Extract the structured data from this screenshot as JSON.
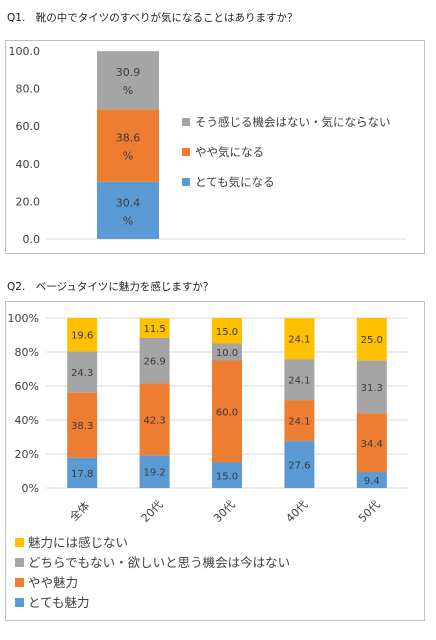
{
  "q1": {
    "title": "Q1.　靴の中でタイツのすべりが気になることはありますか？"
  },
  "q2": {
    "title": "Q2.　ベージュタイツに魅力を感じますか？"
  },
  "colors": {
    "yellow": "#ffc000",
    "gray": "#a5a5a5",
    "orange": "#ed7d31",
    "blue": "#5b9bd5",
    "text": "#404040",
    "grid": "#d9d9d9"
  },
  "chart_data": [
    {
      "type": "bar",
      "stacked": true,
      "title": "",
      "categories": [
        ""
      ],
      "series": [
        {
          "name": "とても気になる",
          "values": [
            30.4
          ],
          "labels": [
            "30.4\n%"
          ],
          "color": "#5b9bd5"
        },
        {
          "name": "やや気になる",
          "values": [
            38.6
          ],
          "labels": [
            "38.6\n%"
          ],
          "color": "#ed7d31"
        },
        {
          "name": "そう感じる機会はない・気にならない",
          "values": [
            30.9
          ],
          "labels": [
            "30.9\n%"
          ],
          "color": "#a5a5a5"
        }
      ],
      "yticks": [
        "0.0",
        "20.0",
        "40.0",
        "60.0",
        "80.0",
        "100.0"
      ],
      "ylim": [
        0,
        100
      ],
      "grid": false,
      "legend": "right"
    },
    {
      "type": "bar",
      "stacked": true,
      "title": "",
      "categories": [
        "全体",
        "20代",
        "30代",
        "40代",
        "50代"
      ],
      "series": [
        {
          "name": "とても魅力",
          "values": [
            17.8,
            19.2,
            15.0,
            27.6,
            9.4
          ],
          "labels": [
            "17.8",
            "19.2",
            "15.0",
            "27.6",
            "9.4"
          ],
          "color": "#5b9bd5"
        },
        {
          "name": "やや魅力",
          "values": [
            38.3,
            42.3,
            60.0,
            24.1,
            34.4
          ],
          "labels": [
            "38.3",
            "42.3",
            "60.0",
            "24.1",
            "34.4"
          ],
          "color": "#ed7d31"
        },
        {
          "name": "どちらでもない・欲しいと思う機会は今はない",
          "values": [
            24.3,
            26.9,
            10.0,
            24.1,
            31.3
          ],
          "labels": [
            "24.3",
            "26.9",
            "10.0",
            "24.1",
            "31.3"
          ],
          "color": "#a5a5a5"
        },
        {
          "name": "魅力には感じない",
          "values": [
            19.6,
            11.5,
            15.0,
            24.1,
            25.0
          ],
          "labels": [
            "19.6",
            "11.5",
            "15.0",
            "24.1",
            "25.0"
          ],
          "color": "#ffc000"
        }
      ],
      "yticks": [
        "0%",
        "20%",
        "40%",
        "60%",
        "80%",
        "100%"
      ],
      "ylim": [
        0,
        100
      ],
      "grid": true,
      "legend": "bottom"
    }
  ]
}
